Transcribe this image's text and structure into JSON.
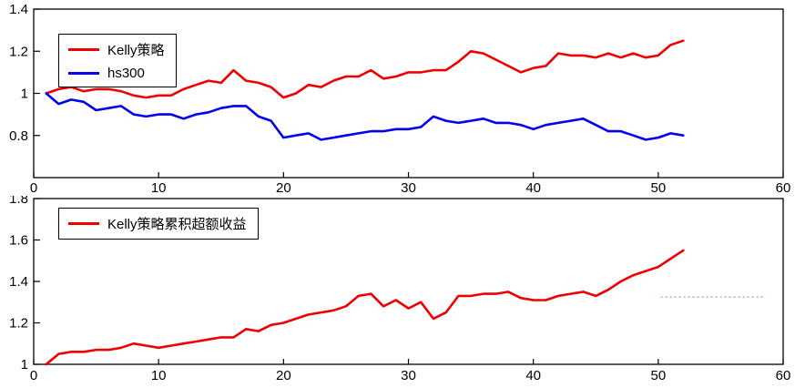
{
  "figure": {
    "background": "#ffffff",
    "axis_color": "#000000"
  },
  "chart_data": [
    {
      "type": "line",
      "title": "",
      "xlabel": "",
      "ylabel": "",
      "xlim": [
        0,
        60
      ],
      "ylim": [
        0.6,
        1.4
      ],
      "xticks": [
        0,
        10,
        20,
        30,
        40,
        50,
        60
      ],
      "xtick_labels": [
        "0",
        "10",
        "20",
        "30",
        "40",
        "50",
        "60"
      ],
      "yticks": [
        0.8,
        1.0,
        1.2,
        1.4
      ],
      "ytick_labels": [
        "0.8",
        "1",
        "1.2",
        "1.4"
      ],
      "grid": false,
      "legend_position": "top-left",
      "x_start": 1,
      "x_step": 1,
      "series": [
        {
          "name": "Kelly策略",
          "color": "#ee0000",
          "values": [
            1.0,
            1.02,
            1.03,
            1.01,
            1.02,
            1.02,
            1.01,
            0.99,
            0.98,
            0.99,
            0.99,
            1.02,
            1.04,
            1.06,
            1.05,
            1.11,
            1.06,
            1.05,
            1.03,
            0.98,
            1.0,
            1.04,
            1.03,
            1.06,
            1.08,
            1.08,
            1.11,
            1.07,
            1.08,
            1.1,
            1.1,
            1.11,
            1.11,
            1.15,
            1.2,
            1.19,
            1.16,
            1.13,
            1.1,
            1.12,
            1.13,
            1.19,
            1.18,
            1.18,
            1.17,
            1.19,
            1.17,
            1.19,
            1.17,
            1.18,
            1.23,
            1.25
          ]
        },
        {
          "name": "hs300",
          "color": "#0000ee",
          "values": [
            1.0,
            0.95,
            0.97,
            0.96,
            0.92,
            0.93,
            0.94,
            0.9,
            0.89,
            0.9,
            0.9,
            0.88,
            0.9,
            0.91,
            0.93,
            0.94,
            0.94,
            0.89,
            0.87,
            0.79,
            0.8,
            0.81,
            0.78,
            0.79,
            0.8,
            0.81,
            0.82,
            0.82,
            0.83,
            0.83,
            0.84,
            0.89,
            0.87,
            0.86,
            0.87,
            0.88,
            0.86,
            0.86,
            0.85,
            0.83,
            0.85,
            0.86,
            0.87,
            0.88,
            0.85,
            0.82,
            0.82,
            0.8,
            0.78,
            0.79,
            0.81,
            0.8
          ]
        }
      ],
      "annotations": []
    },
    {
      "type": "line",
      "title": "",
      "xlabel": "",
      "ylabel": "",
      "xlim": [
        0,
        60
      ],
      "ylim": [
        1.0,
        1.8
      ],
      "xticks": [
        0,
        10,
        20,
        30,
        40,
        50,
        60
      ],
      "xtick_labels": [
        "0",
        "10",
        "20",
        "30",
        "40",
        "50",
        "60"
      ],
      "yticks": [
        1.0,
        1.2,
        1.4,
        1.6,
        1.8
      ],
      "ytick_labels": [
        "1",
        "1.2",
        "1.4",
        "1.6",
        "1.8"
      ],
      "grid": false,
      "legend_position": "top-left",
      "x_start": 1,
      "x_step": 1,
      "series": [
        {
          "name": "Kelly策略累积超额收益",
          "color": "#ee0000",
          "values": [
            1.0,
            1.05,
            1.06,
            1.06,
            1.07,
            1.07,
            1.08,
            1.1,
            1.09,
            1.08,
            1.09,
            1.1,
            1.11,
            1.12,
            1.13,
            1.13,
            1.17,
            1.16,
            1.19,
            1.2,
            1.22,
            1.24,
            1.25,
            1.26,
            1.28,
            1.33,
            1.34,
            1.28,
            1.31,
            1.27,
            1.3,
            1.22,
            1.25,
            1.33,
            1.33,
            1.34,
            1.34,
            1.35,
            1.32,
            1.31,
            1.31,
            1.33,
            1.34,
            1.35,
            1.33,
            1.36,
            1.4,
            1.43,
            1.45,
            1.47,
            1.51,
            1.55
          ]
        }
      ],
      "annotations": [
        {
          "type": "dotted-line",
          "x1": 50.2,
          "x2": 58.6,
          "y": 1.325,
          "color": "#cfa0a0"
        }
      ]
    }
  ]
}
